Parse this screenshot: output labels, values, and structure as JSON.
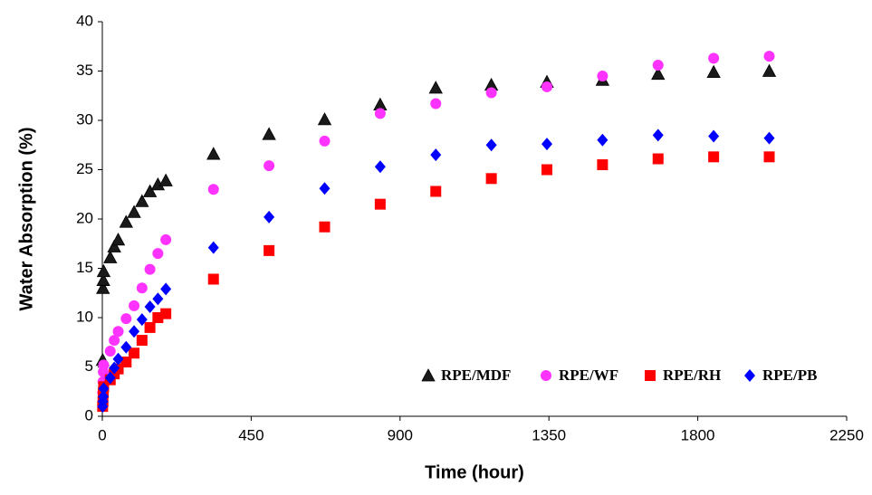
{
  "chart_data": {
    "type": "scatter",
    "xlabel": "Time (hour)",
    "ylabel": "Water Absorption (%)",
    "x": [
      1,
      2,
      3,
      4,
      24,
      36,
      48,
      72,
      96,
      120,
      144,
      168,
      192,
      336,
      504,
      672,
      840,
      1008,
      1176,
      1344,
      1512,
      1680,
      1848,
      2016
    ],
    "series": [
      {
        "name": "RPE/MDF",
        "color": "#1a1a1a",
        "marker": "triangle",
        "values": [
          5.7,
          13.0,
          13.8,
          14.7,
          16.1,
          17.2,
          17.9,
          19.7,
          20.7,
          21.8,
          22.8,
          23.5,
          23.9,
          26.6,
          28.6,
          30.1,
          31.6,
          33.3,
          33.6,
          33.9,
          34.1,
          34.7,
          34.9,
          35.0
        ]
      },
      {
        "name": "RPE/WF",
        "color": "#ff33ff",
        "marker": "circle",
        "values": [
          2.4,
          3.5,
          4.5,
          5.2,
          6.6,
          7.7,
          8.6,
          9.9,
          11.2,
          13.0,
          14.9,
          16.5,
          17.9,
          23.0,
          25.4,
          27.9,
          30.7,
          31.7,
          32.8,
          33.4,
          34.5,
          35.6,
          36.3,
          36.5
        ]
      },
      {
        "name": "RPE/RH",
        "color": "#ff0000",
        "marker": "square",
        "values": [
          1.0,
          1.5,
          2.4,
          3.0,
          3.7,
          4.3,
          4.8,
          5.5,
          6.4,
          7.7,
          9.0,
          10.0,
          10.4,
          13.9,
          16.8,
          19.2,
          21.5,
          22.8,
          24.1,
          25.0,
          25.5,
          26.1,
          26.3,
          26.3
        ]
      },
      {
        "name": "RPE/PB",
        "color": "#0000ff",
        "marker": "diamond",
        "values": [
          1.0,
          1.5,
          2.0,
          2.8,
          3.9,
          4.9,
          5.8,
          7.0,
          8.6,
          9.8,
          11.1,
          11.9,
          12.9,
          17.1,
          20.2,
          23.1,
          25.3,
          26.5,
          27.5,
          27.6,
          28.0,
          28.5,
          28.4,
          28.2
        ]
      }
    ],
    "xlim": [
      0,
      2250
    ],
    "xticks": [
      0,
      450,
      900,
      1350,
      1800,
      2250
    ],
    "ylim": [
      0,
      40
    ],
    "yticks": [
      0,
      5,
      10,
      15,
      20,
      25,
      30,
      35,
      40
    ],
    "grid": false,
    "legend": "lower right"
  }
}
